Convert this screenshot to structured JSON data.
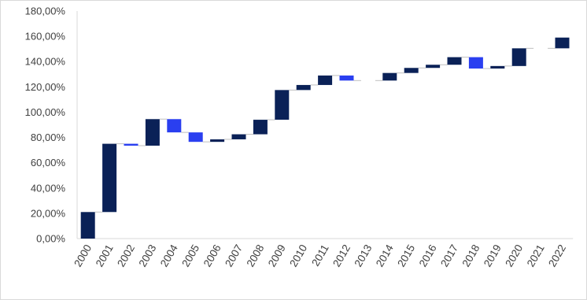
{
  "chart_data": {
    "type": "waterfall",
    "title": "",
    "xlabel": "",
    "ylabel": "",
    "ylim": [
      0,
      180
    ],
    "y_ticks": [
      "0,00%",
      "20,00%",
      "40,00%",
      "60,00%",
      "80,00%",
      "100,00%",
      "120,00%",
      "140,00%",
      "160,00%",
      "180,00%"
    ],
    "y_tick_values": [
      0,
      20,
      40,
      60,
      80,
      100,
      120,
      140,
      160,
      180
    ],
    "grid": false,
    "legend": "none",
    "colors": {
      "increase": "#0a2157",
      "decrease": "#2a3ff0",
      "connector": "#bfbfbf",
      "axis": "#d9d9d9"
    },
    "categories": [
      "2000",
      "2001",
      "2002",
      "2003",
      "2004",
      "2005",
      "2006",
      "2007",
      "2008",
      "2009",
      "2010",
      "2011",
      "2012",
      "2013",
      "2014",
      "2015",
      "2016",
      "2017",
      "2018",
      "2019",
      "2020",
      "2021",
      "2022"
    ],
    "bars": [
      {
        "start": 0,
        "end": 21
      },
      {
        "start": 21,
        "end": 75
      },
      {
        "start": 75,
        "end": 73.5
      },
      {
        "start": 73.5,
        "end": 94.5
      },
      {
        "start": 94.5,
        "end": 84
      },
      {
        "start": 84,
        "end": 76.5
      },
      {
        "start": 76.5,
        "end": 78.5
      },
      {
        "start": 78.5,
        "end": 82.5
      },
      {
        "start": 82.5,
        "end": 94
      },
      {
        "start": 94,
        "end": 117.5
      },
      {
        "start": 117.5,
        "end": 121.5
      },
      {
        "start": 121.5,
        "end": 129
      },
      {
        "start": 129,
        "end": 125
      },
      {
        "start": 125,
        "end": 125
      },
      {
        "start": 125,
        "end": 131
      },
      {
        "start": 131,
        "end": 135
      },
      {
        "start": 135,
        "end": 137.5
      },
      {
        "start": 137.5,
        "end": 143.5
      },
      {
        "start": 143.5,
        "end": 134.5
      },
      {
        "start": 134.5,
        "end": 136.5
      },
      {
        "start": 136.5,
        "end": 150.5
      },
      {
        "start": 150.5,
        "end": 150.5
      },
      {
        "start": 150.5,
        "end": 159
      }
    ]
  }
}
